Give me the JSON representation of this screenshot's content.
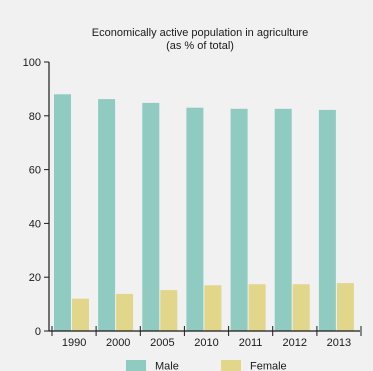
{
  "chart_data": {
    "type": "bar",
    "title_lines": [
      "Economically active population in agriculture",
      "(as % of total)"
    ],
    "categories": [
      "1990",
      "2000",
      "2005",
      "2010",
      "2011",
      "2012",
      "2013"
    ],
    "series": [
      {
        "name": "Male",
        "values": [
          88,
          86.2,
          84.8,
          83,
          82.6,
          82.6,
          82.2
        ],
        "color": "#8fcbc0"
      },
      {
        "name": "Female",
        "values": [
          12,
          13.8,
          15.2,
          17,
          17.4,
          17.4,
          17.8
        ],
        "color": "#e2d68a"
      }
    ],
    "ylim": [
      0,
      100
    ],
    "yticks": [
      0,
      20,
      40,
      60,
      80,
      100
    ],
    "grid": false,
    "legend_position": "bottom"
  },
  "colors": {
    "background": "#f1f1f1",
    "axis": "#1a1a1a"
  }
}
